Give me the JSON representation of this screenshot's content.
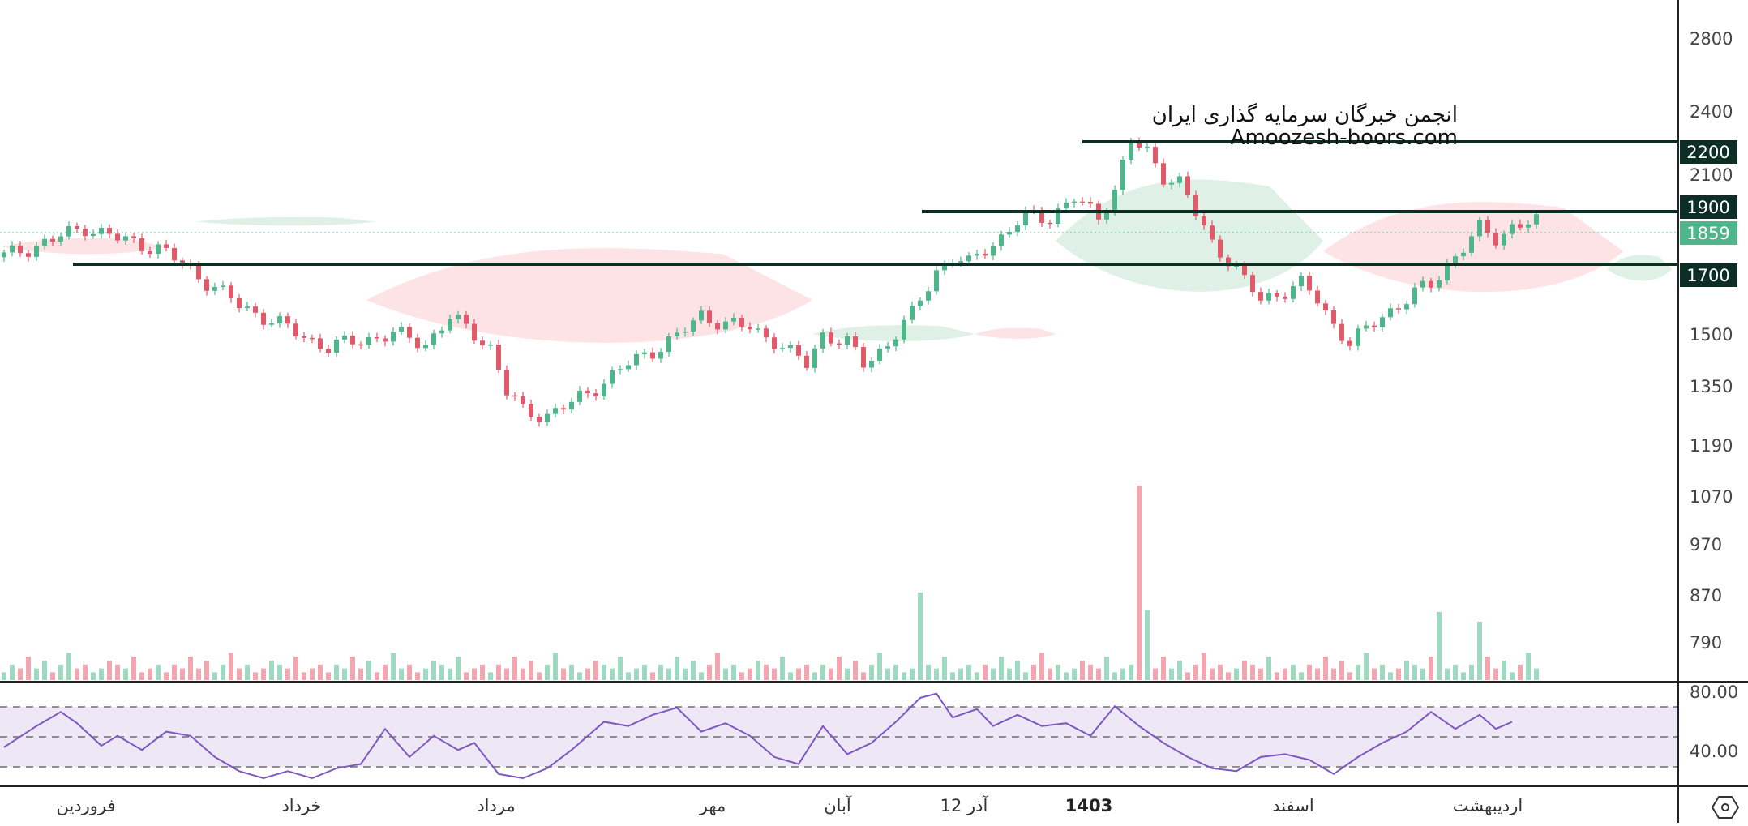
{
  "watermark": {
    "line1": "انجمن خبرگان سرمایه گذاری ایران",
    "line2": "Amoozesh-boors.com"
  },
  "price_axis": {
    "ticks": [
      "2800",
      "2400",
      "2100",
      "1500",
      "1350",
      "1190",
      "1070",
      "970",
      "870",
      "790"
    ],
    "badges": [
      {
        "value": "2200",
        "kind": "level"
      },
      {
        "value": "1900",
        "kind": "level"
      },
      {
        "value": "1859",
        "kind": "last"
      },
      {
        "value": "1700",
        "kind": "level"
      }
    ]
  },
  "rsi_axis": {
    "ticks": [
      "80.00",
      "40.00"
    ]
  },
  "time_axis": {
    "labels": [
      "فروردین",
      "خرداد",
      "مرداد",
      "مهر",
      "آبان",
      "12 آذر",
      "1403",
      "اسفند",
      "اردیبهشت"
    ]
  },
  "colors": {
    "up": "#4fb58a",
    "down": "#e05a6a",
    "level_line": "#0c2e25",
    "badge_bg": "#0c2e25",
    "last_price_bg": "#4fb58a",
    "rsi_line": "#7e57c2",
    "rsi_band": "#ede7f6",
    "cloud_bull": "#dff1e6",
    "cloud_bear": "#fde3e5"
  },
  "icons": {
    "corner": "gear-hexagon-icon"
  },
  "chart_data": {
    "type": "candlestick",
    "price_scale": "log",
    "price_ticks": [
      2800,
      2400,
      2100,
      1500,
      1350,
      1190,
      1070,
      970,
      870,
      790
    ],
    "horizontal_levels": [
      2200,
      1900,
      1700
    ],
    "last_price": 1859,
    "close_path": [
      [
        0,
        1730
      ],
      [
        6,
        1790
      ],
      [
        10,
        1840
      ],
      [
        14,
        1795
      ],
      [
        19,
        1760
      ],
      [
        21,
        1720
      ],
      [
        25,
        1640
      ],
      [
        29,
        1560
      ],
      [
        34,
        1500
      ],
      [
        37,
        1460
      ],
      [
        40,
        1430
      ],
      [
        44,
        1450
      ],
      [
        48,
        1470
      ],
      [
        52,
        1440
      ],
      [
        55,
        1520
      ],
      [
        58,
        1470
      ],
      [
        60,
        1430
      ],
      [
        62,
        1300
      ],
      [
        64,
        1250
      ],
      [
        67,
        1240
      ],
      [
        70,
        1270
      ],
      [
        74,
        1330
      ],
      [
        77,
        1380
      ],
      [
        80,
        1420
      ],
      [
        83,
        1460
      ],
      [
        86,
        1530
      ],
      [
        89,
        1500
      ],
      [
        92,
        1490
      ],
      [
        95,
        1450
      ],
      [
        97,
        1410
      ],
      [
        99,
        1380
      ],
      [
        101,
        1470
      ],
      [
        104,
        1440
      ],
      [
        106,
        1380
      ],
      [
        109,
        1440
      ],
      [
        112,
        1530
      ],
      [
        115,
        1680
      ],
      [
        117,
        1720
      ],
      [
        119,
        1700
      ],
      [
        121,
        1760
      ],
      [
        123,
        1800
      ],
      [
        126,
        1880
      ],
      [
        129,
        1880
      ],
      [
        132,
        1950
      ],
      [
        135,
        1880
      ],
      [
        137,
        1990
      ],
      [
        139,
        2200
      ],
      [
        141,
        2150
      ],
      [
        143,
        2050
      ],
      [
        145,
        2020
      ],
      [
        147,
        1890
      ],
      [
        149,
        1780
      ],
      [
        151,
        1720
      ],
      [
        153,
        1640
      ],
      [
        155,
        1580
      ],
      [
        158,
        1610
      ],
      [
        160,
        1630
      ],
      [
        162,
        1580
      ],
      [
        164,
        1500
      ],
      [
        166,
        1440
      ],
      [
        168,
        1480
      ],
      [
        170,
        1530
      ],
      [
        172,
        1560
      ],
      [
        174,
        1600
      ],
      [
        176,
        1630
      ],
      [
        178,
        1700
      ],
      [
        180,
        1760
      ],
      [
        182,
        1830
      ],
      [
        184,
        1800
      ],
      [
        186,
        1840
      ],
      [
        189,
        1859
      ]
    ],
    "ichimoku_cloud": [
      {
        "sentiment": "bearish",
        "from": 0,
        "to": 20,
        "top": 1800,
        "bottom": 1730
      },
      {
        "sentiment": "bullish",
        "from": 24,
        "to": 46,
        "top": 1880,
        "bottom": 1840
      },
      {
        "sentiment": "bearish",
        "from": 45,
        "to": 100,
        "top": 1780,
        "bottom": 1400
      },
      {
        "sentiment": "bullish",
        "from": 100,
        "to": 120,
        "top": 1500,
        "bottom": 1440
      },
      {
        "sentiment": "bearish",
        "from": 120,
        "to": 130,
        "top": 1490,
        "bottom": 1450
      },
      {
        "sentiment": "bullish",
        "from": 130,
        "to": 163,
        "top": 2060,
        "bottom": 1550
      },
      {
        "sentiment": "bearish",
        "from": 163,
        "to": 200,
        "top": 1960,
        "bottom": 1560
      },
      {
        "sentiment": "bullish",
        "from": 198,
        "to": 206,
        "top": 1740,
        "bottom": 1630
      }
    ],
    "rsi": {
      "ylim": [
        25,
        90
      ],
      "band": [
        70,
        30
      ],
      "midline": 50,
      "path": [
        [
          0,
          47
        ],
        [
          4,
          62
        ],
        [
          7,
          72
        ],
        [
          9,
          64
        ],
        [
          12,
          48
        ],
        [
          14,
          55
        ],
        [
          17,
          45
        ],
        [
          20,
          58
        ],
        [
          23,
          55
        ],
        [
          26,
          40
        ],
        [
          29,
          30
        ],
        [
          32,
          25
        ],
        [
          35,
          30
        ],
        [
          38,
          25
        ],
        [
          41,
          32
        ],
        [
          44,
          35
        ],
        [
          47,
          60
        ],
        [
          50,
          40
        ],
        [
          53,
          55
        ],
        [
          56,
          45
        ],
        [
          58,
          50
        ],
        [
          61,
          28
        ],
        [
          64,
          25
        ],
        [
          67,
          32
        ],
        [
          70,
          45
        ],
        [
          74,
          65
        ],
        [
          77,
          62
        ],
        [
          80,
          70
        ],
        [
          83,
          75
        ],
        [
          86,
          58
        ],
        [
          89,
          64
        ],
        [
          92,
          55
        ],
        [
          95,
          40
        ],
        [
          98,
          35
        ],
        [
          101,
          62
        ],
        [
          104,
          42
        ],
        [
          107,
          50
        ],
        [
          110,
          65
        ],
        [
          113,
          82
        ],
        [
          115,
          85
        ],
        [
          117,
          68
        ],
        [
          120,
          74
        ],
        [
          122,
          62
        ],
        [
          125,
          70
        ],
        [
          128,
          62
        ],
        [
          131,
          64
        ],
        [
          134,
          55
        ],
        [
          137,
          76
        ],
        [
          140,
          62
        ],
        [
          143,
          50
        ],
        [
          146,
          40
        ],
        [
          149,
          32
        ],
        [
          152,
          30
        ],
        [
          155,
          40
        ],
        [
          158,
          42
        ],
        [
          161,
          38
        ],
        [
          164,
          28
        ],
        [
          167,
          40
        ],
        [
          170,
          50
        ],
        [
          173,
          58
        ],
        [
          176,
          72
        ],
        [
          179,
          60
        ],
        [
          182,
          70
        ],
        [
          184,
          60
        ],
        [
          186,
          65
        ]
      ]
    },
    "volume": {
      "spikes": [
        [
          113,
          0.45
        ],
        [
          140,
          1.0
        ],
        [
          141,
          0.36
        ],
        [
          177,
          0.35
        ],
        [
          182,
          0.3
        ]
      ],
      "pattern": [
        1,
        3,
        2,
        5,
        2,
        4,
        1,
        3,
        6,
        2,
        3,
        1,
        2,
        4,
        3,
        2,
        5,
        1,
        2,
        3
      ]
    },
    "x_axis_labels": [
      "فروردین",
      "خرداد",
      "مرداد",
      "مهر",
      "آبان",
      "12 آذر",
      "1403",
      "اسفند",
      "اردیبهشت"
    ],
    "y_axis_right_labels": [
      "2800",
      "2400",
      "2100",
      "1500",
      "1350",
      "1190",
      "1070",
      "970",
      "870",
      "790"
    ]
  }
}
